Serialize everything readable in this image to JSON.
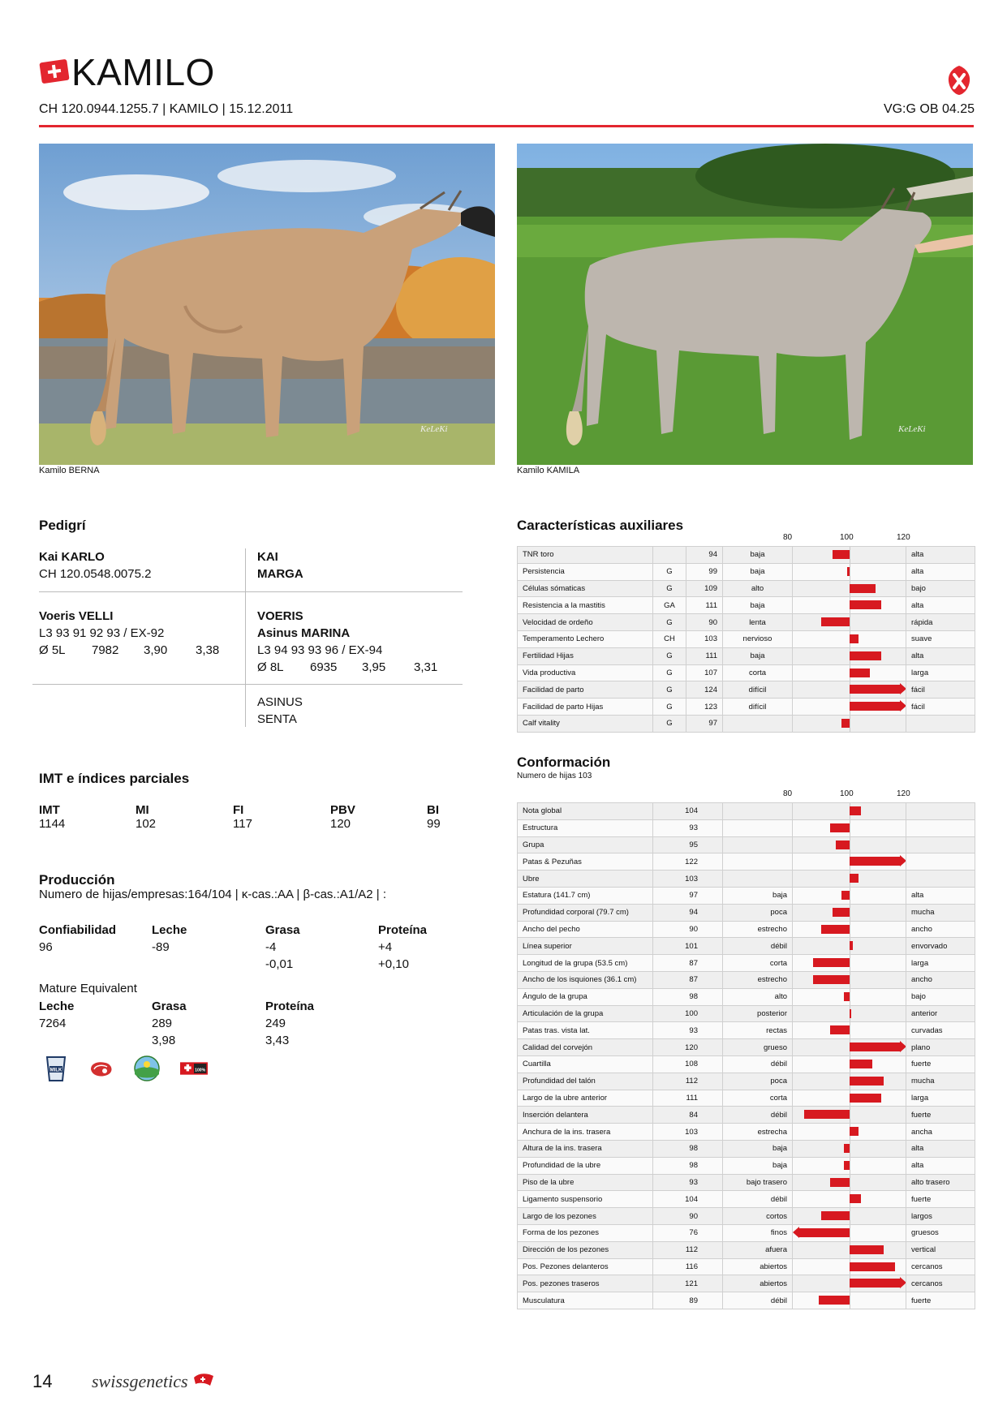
{
  "header": {
    "name": "KAMILO",
    "id_line": "CH 120.0944.1255.7 | KAMILO | 15.12.2011",
    "classification": "VG:G OB 04.25"
  },
  "photos": {
    "left_caption": "Kamilo BERNA",
    "right_caption": "Kamilo KAMILA",
    "watermark": "KeLeKi"
  },
  "pedigree": {
    "title": "Pedigrí",
    "sire": {
      "name": "Kai KARLO",
      "id": "CH 120.0548.0075.2"
    },
    "sire_sire": "KAI",
    "sire_dam": "MARGA",
    "dam": {
      "name": "Voeris VELLI",
      "score": "L3 93 91 92 93 / EX-92",
      "lact": "Ø 5L",
      "milk": "7982",
      "fat": "3,90",
      "protein": "3,38"
    },
    "dam_sire": "VOERIS",
    "dam_dam": {
      "name": "Asinus MARINA",
      "score": "L3 94 93 93 96 / EX-94",
      "lact": "Ø 8L",
      "milk": "6935",
      "fat": "3,95",
      "protein": "3,31"
    },
    "dam_dam_sire_1": "ASINUS",
    "dam_dam_sire_2": "SENTA"
  },
  "indices": {
    "title": "IMT e índices parciales",
    "items": [
      {
        "label": "IMT",
        "value": "1144"
      },
      {
        "label": "MI",
        "value": "102"
      },
      {
        "label": "FI",
        "value": "117"
      },
      {
        "label": "PBV",
        "value": "120"
      },
      {
        "label": "BI",
        "value": "99"
      }
    ]
  },
  "production": {
    "title": "Producción",
    "subtitle": "Numero de hijas/empresas:164/104 | κ-cas.:AA | β-cas.:A1/A2 | :",
    "cols": [
      {
        "label": "Confiabilidad",
        "v1": "96",
        "v2": ""
      },
      {
        "label": "Leche",
        "v1": "-89",
        "v2": ""
      },
      {
        "label": "Grasa",
        "v1": "-4",
        "v2": "-0,01"
      },
      {
        "label": "Proteína",
        "v1": "+4",
        "v2": "+0,10"
      }
    ],
    "me_title": "Mature Equivalent",
    "me": [
      {
        "label": "Leche",
        "v1": "7264",
        "v2": ""
      },
      {
        "label": "Grasa",
        "v1": "289",
        "v2": "3,98"
      },
      {
        "label": "Proteína",
        "v1": "249",
        "v2": "3,43"
      }
    ]
  },
  "icons": [
    "milk-glass-icon",
    "meat-icon",
    "landscape-icon",
    "swiss-100-icon"
  ],
  "icon_texts": {
    "milk": "MILK",
    "swiss": "100%"
  },
  "aux": {
    "title": "Características auxiliares",
    "scale": [
      "80",
      "100",
      "120"
    ],
    "rows": [
      {
        "trait": "TNR toro",
        "src": "",
        "value": 94,
        "low": "baja",
        "high": "alta"
      },
      {
        "trait": "Persistencia",
        "src": "G",
        "value": 99,
        "low": "baja",
        "high": "alta"
      },
      {
        "trait": "Células sómaticas",
        "src": "G",
        "value": 109,
        "low": "alto",
        "high": "bajo"
      },
      {
        "trait": "Resistencia a la mastitis",
        "src": "GA",
        "value": 111,
        "low": "baja",
        "high": "alta"
      },
      {
        "trait": "Velocidad de ordeño",
        "src": "G",
        "value": 90,
        "low": "lenta",
        "high": "rápida"
      },
      {
        "trait": "Temperamento Lechero",
        "src": "CH",
        "value": 103,
        "low": "nervioso",
        "high": "suave"
      },
      {
        "trait": "Fertilidad Hijas",
        "src": "G",
        "value": 111,
        "low": "baja",
        "high": "alta"
      },
      {
        "trait": "Vida productiva",
        "src": "G",
        "value": 107,
        "low": "corta",
        "high": "larga"
      },
      {
        "trait": "Facilidad de parto",
        "src": "G",
        "value": 124,
        "low": "difícil",
        "high": "fácil"
      },
      {
        "trait": "Facilidad de parto Hijas",
        "src": "G",
        "value": 123,
        "low": "difícil",
        "high": "fácil"
      },
      {
        "trait": "Calf vitality",
        "src": "G",
        "value": 97,
        "low": "",
        "high": ""
      }
    ]
  },
  "conf": {
    "title": "Conformación",
    "subtitle": "Numero de hijas 103",
    "scale": [
      "80",
      "100",
      "120"
    ],
    "rows": [
      {
        "trait": "Nota global",
        "value": 104,
        "low": "",
        "high": ""
      },
      {
        "trait": "Estructura",
        "value": 93,
        "low": "",
        "high": ""
      },
      {
        "trait": "Grupa",
        "value": 95,
        "low": "",
        "high": ""
      },
      {
        "trait": "Patas & Pezuñas",
        "value": 122,
        "low": "",
        "high": ""
      },
      {
        "trait": "Ubre",
        "value": 103,
        "low": "",
        "high": ""
      },
      {
        "trait": "Estatura (141.7 cm)",
        "value": 97,
        "low": "baja",
        "high": "alta"
      },
      {
        "trait": "Profundidad corporal (79.7 cm)",
        "value": 94,
        "low": "poca",
        "high": "mucha"
      },
      {
        "trait": "Ancho del pecho",
        "value": 90,
        "low": "estrecho",
        "high": "ancho"
      },
      {
        "trait": "Línea superior",
        "value": 101,
        "low": "débil",
        "high": "envorvado"
      },
      {
        "trait": "Longitud de la grupa (53.5 cm)",
        "value": 87,
        "low": "corta",
        "high": "larga"
      },
      {
        "trait": "Ancho de los isquiones (36.1 cm)",
        "value": 87,
        "low": "estrecho",
        "high": "ancho"
      },
      {
        "trait": "Ángulo de la grupa",
        "value": 98,
        "low": "alto",
        "high": "bajo"
      },
      {
        "trait": "Articulación de la grupa",
        "value": 100,
        "low": "posterior",
        "high": "anterior"
      },
      {
        "trait": "Patas tras. vista lat.",
        "value": 93,
        "low": "rectas",
        "high": "curvadas"
      },
      {
        "trait": "Calidad del corvejón",
        "value": 120,
        "low": "grueso",
        "high": "plano"
      },
      {
        "trait": "Cuartilla",
        "value": 108,
        "low": "débil",
        "high": "fuerte"
      },
      {
        "trait": "Profundidad del talón",
        "value": 112,
        "low": "poca",
        "high": "mucha"
      },
      {
        "trait": "Largo de la ubre anterior",
        "value": 111,
        "low": "corta",
        "high": "larga"
      },
      {
        "trait": "Inserción delantera",
        "value": 84,
        "low": "débil",
        "high": "fuerte"
      },
      {
        "trait": "Anchura de la ins. trasera",
        "value": 103,
        "low": "estrecha",
        "high": "ancha"
      },
      {
        "trait": "Altura de la ins. trasera",
        "value": 98,
        "low": "baja",
        "high": "alta"
      },
      {
        "trait": "Profundidad de la ubre",
        "value": 98,
        "low": "baja",
        "high": "alta"
      },
      {
        "trait": "Piso de la ubre",
        "value": 93,
        "low": "bajo trasero",
        "high": "alto trasero"
      },
      {
        "trait": "Ligamento suspensorio",
        "value": 104,
        "low": "débil",
        "high": "fuerte"
      },
      {
        "trait": "Largo de los pezones",
        "value": 90,
        "low": "cortos",
        "high": "largos"
      },
      {
        "trait": "Forma de los pezones",
        "value": 76,
        "low": "finos",
        "high": "gruesos"
      },
      {
        "trait": "Dirección de los pezones",
        "value": 112,
        "low": "afuera",
        "high": "vertical"
      },
      {
        "trait": "Pos. Pezones delanteros",
        "value": 116,
        "low": "abiertos",
        "high": "cercanos"
      },
      {
        "trait": "Pos. pezones traseros",
        "value": 121,
        "low": "abiertos",
        "high": "cercanos"
      },
      {
        "trait": "Musculatura",
        "value": 89,
        "low": "débil",
        "high": "fuerte"
      }
    ]
  },
  "footer": {
    "page": "14",
    "brand": "swissgenetics"
  },
  "colors": {
    "accent": "#e3262f",
    "bar": "#d71920"
  }
}
